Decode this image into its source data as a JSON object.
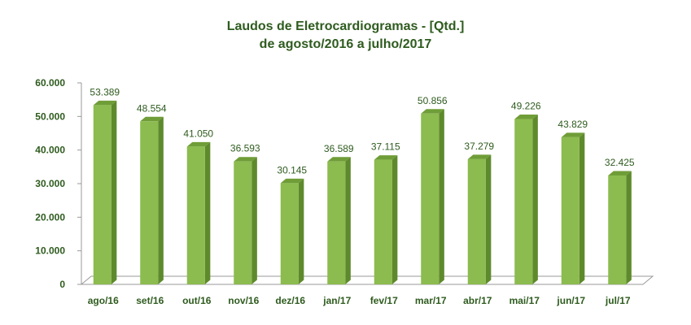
{
  "chart_data": {
    "type": "bar",
    "title_line1": "Laudos de Eletrocardiogramas - [Qtd.]",
    "title_line2": "de  agosto/2016 a julho/2017",
    "xlabel": "",
    "ylabel": "",
    "ylim": [
      0,
      60000
    ],
    "y_ticks": [
      0,
      10000,
      20000,
      30000,
      40000,
      50000,
      60000
    ],
    "y_tick_labels": [
      "0",
      "10.000",
      "20.000",
      "30.000",
      "40.000",
      "50.000",
      "60.000"
    ],
    "categories": [
      "ago/16",
      "set/16",
      "out/16",
      "nov/16",
      "dez/16",
      "jan/17",
      "fev/17",
      "mar/17",
      "abr/17",
      "mai/17",
      "jun/17",
      "jul/17"
    ],
    "values": [
      53389,
      48554,
      41050,
      36593,
      30145,
      36589,
      37115,
      50856,
      37279,
      49226,
      43829,
      32425
    ],
    "value_labels": [
      "53.389",
      "48.554",
      "41.050",
      "36.593",
      "30.145",
      "36.589",
      "37.115",
      "50.856",
      "37.279",
      "49.226",
      "43.829",
      "32.425"
    ],
    "grid": false,
    "legend": "none",
    "colors": {
      "bar_front": "#8cbb4f",
      "bar_side": "#5e8a2c",
      "bar_top": "#6f9d37",
      "text": "#2e5b1e",
      "axis": "#999999"
    }
  }
}
